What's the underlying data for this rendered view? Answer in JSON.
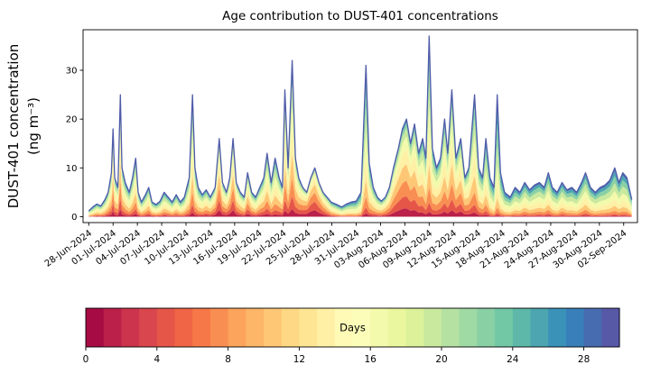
{
  "figure": {
    "background": "#ffffff"
  },
  "chart_data": {
    "type": "area",
    "title": "Age contribution to DUST-401 concentrations",
    "ylabel_line1": "DUST-401 concentration",
    "ylabel_line2": "(ng m⁻³)",
    "xlabel": "",
    "y_ticks": [
      0,
      10,
      20,
      30
    ],
    "ylim": [
      -1.2,
      38.3
    ],
    "xlim": [
      -0.7,
      67.7
    ],
    "x_tick_days": [
      0,
      3,
      6,
      9,
      12,
      15,
      18,
      21,
      24,
      27,
      30,
      33,
      36,
      39,
      42,
      45,
      48,
      51,
      54,
      57,
      60,
      63,
      66
    ],
    "x_tick_labels": [
      "28-Jun-2024",
      "01-Jul-2024",
      "04-Jul-2024",
      "07-Jul-2024",
      "10-Jul-2024",
      "13-Jul-2024",
      "16-Jul-2024",
      "19-Jul-2024",
      "22-Jul-2024",
      "25-Jul-2024",
      "28-Jul-2024",
      "31-Jul-2024",
      "03-Aug-2024",
      "06-Aug-2024",
      "09-Aug-2024",
      "12-Aug-2024",
      "15-Aug-2024",
      "18-Aug-2024",
      "21-Aug-2024",
      "24-Aug-2024",
      "27-Aug-2024",
      "30-Aug-2024",
      "02-Sep-2024"
    ],
    "colorbar": {
      "label": "Days",
      "ticks": [
        0,
        4,
        8,
        12,
        16,
        20,
        24,
        28
      ],
      "n_segments": 30,
      "max_days": 30
    },
    "colormap_anchors": [
      "#9e0142",
      "#d53e4f",
      "#f46d43",
      "#fdae61",
      "#fee08b",
      "#ffffbf",
      "#e6f598",
      "#abdda4",
      "#66c2a5",
      "#3288bd",
      "#5e4fa2"
    ],
    "line_color": "#4f5ba8",
    "n_age_bands": 10,
    "age_profile_sigma": 0.25,
    "age_profile_floor": 0.025,
    "points_note": "each point = [days since 28-Jun-2024, total concentration ng/m3, mean age fraction 0=fresh 1=old], values estimated from plot",
    "points": [
      [
        0,
        1.2,
        0.55
      ],
      [
        0.5,
        2,
        0.55
      ],
      [
        1,
        2.6,
        0.5
      ],
      [
        1.5,
        2.2,
        0.5
      ],
      [
        2,
        3.5,
        0.5
      ],
      [
        2.4,
        5,
        0.45
      ],
      [
        2.8,
        9,
        0.45
      ],
      [
        3,
        18,
        0.4
      ],
      [
        3.2,
        8,
        0.45
      ],
      [
        3.6,
        6,
        0.45
      ],
      [
        3.9,
        25,
        0.42
      ],
      [
        4.1,
        10,
        0.45
      ],
      [
        4.5,
        7,
        0.48
      ],
      [
        5,
        5,
        0.5
      ],
      [
        5.4,
        8,
        0.48
      ],
      [
        5.8,
        12,
        0.45
      ],
      [
        6.1,
        5,
        0.5
      ],
      [
        6.5,
        3,
        0.52
      ],
      [
        7,
        4.5,
        0.5
      ],
      [
        7.4,
        6,
        0.47
      ],
      [
        7.8,
        3,
        0.5
      ],
      [
        8.3,
        2.5,
        0.52
      ],
      [
        8.8,
        3.2,
        0.52
      ],
      [
        9.3,
        5,
        0.5
      ],
      [
        9.8,
        4,
        0.5
      ],
      [
        10.3,
        3,
        0.52
      ],
      [
        10.8,
        4.5,
        0.5
      ],
      [
        11.3,
        3,
        0.52
      ],
      [
        11.8,
        4,
        0.52
      ],
      [
        12.4,
        8,
        0.5
      ],
      [
        12.8,
        25,
        0.5
      ],
      [
        13.1,
        10,
        0.5
      ],
      [
        13.5,
        6,
        0.5
      ],
      [
        14,
        4.5,
        0.48
      ],
      [
        14.5,
        5.5,
        0.45
      ],
      [
        15,
        4,
        0.45
      ],
      [
        15.6,
        6,
        0.4
      ],
      [
        16.1,
        16,
        0.35
      ],
      [
        16.5,
        7,
        0.4
      ],
      [
        17,
        5,
        0.4
      ],
      [
        17.4,
        8,
        0.38
      ],
      [
        17.8,
        16,
        0.35
      ],
      [
        18.2,
        7,
        0.4
      ],
      [
        18.7,
        5,
        0.43
      ],
      [
        19.2,
        4,
        0.45
      ],
      [
        19.6,
        9,
        0.4
      ],
      [
        20.1,
        5,
        0.45
      ],
      [
        20.6,
        4,
        0.48
      ],
      [
        21.1,
        6,
        0.45
      ],
      [
        21.6,
        8,
        0.45
      ],
      [
        22,
        13,
        0.45
      ],
      [
        22.5,
        7,
        0.48
      ],
      [
        23,
        12,
        0.48
      ],
      [
        23.5,
        8,
        0.45
      ],
      [
        23.9,
        6,
        0.45
      ],
      [
        24.2,
        26,
        0.45
      ],
      [
        24.6,
        10,
        0.42
      ],
      [
        25.1,
        32,
        0.45
      ],
      [
        25.5,
        12,
        0.4
      ],
      [
        25.9,
        8,
        0.38
      ],
      [
        26.4,
        6,
        0.33
      ],
      [
        26.9,
        5,
        0.28
      ],
      [
        27.4,
        8,
        0.25
      ],
      [
        27.9,
        10,
        0.25
      ],
      [
        28.4,
        7,
        0.28
      ],
      [
        28.9,
        5,
        0.33
      ],
      [
        29.4,
        4,
        0.4
      ],
      [
        29.9,
        3,
        0.48
      ],
      [
        30.6,
        2.5,
        0.55
      ],
      [
        31.2,
        2,
        0.58
      ],
      [
        31.8,
        2.6,
        0.58
      ],
      [
        32.4,
        3,
        0.6
      ],
      [
        33,
        3.2,
        0.62
      ],
      [
        33.6,
        5,
        0.62
      ],
      [
        34.2,
        31,
        0.58
      ],
      [
        34.6,
        11,
        0.55
      ],
      [
        35.1,
        6,
        0.5
      ],
      [
        35.6,
        4,
        0.48
      ],
      [
        36.1,
        3.2,
        0.45
      ],
      [
        36.6,
        4,
        0.42
      ],
      [
        37.1,
        6,
        0.4
      ],
      [
        37.6,
        10,
        0.36
      ],
      [
        38.2,
        14,
        0.34
      ],
      [
        38.7,
        18,
        0.34
      ],
      [
        39.2,
        20,
        0.35
      ],
      [
        39.7,
        15,
        0.36
      ],
      [
        40.2,
        19,
        0.38
      ],
      [
        40.7,
        13,
        0.4
      ],
      [
        41.2,
        16,
        0.44
      ],
      [
        41.6,
        12,
        0.48
      ],
      [
        42,
        37,
        0.54
      ],
      [
        42.4,
        14,
        0.5
      ],
      [
        42.9,
        10,
        0.46
      ],
      [
        43.4,
        12,
        0.44
      ],
      [
        43.9,
        20,
        0.44
      ],
      [
        44.3,
        13,
        0.44
      ],
      [
        44.8,
        26,
        0.44
      ],
      [
        45.3,
        12,
        0.42
      ],
      [
        45.9,
        16,
        0.4
      ],
      [
        46.4,
        8,
        0.42
      ],
      [
        46.9,
        10,
        0.45
      ],
      [
        47.6,
        25,
        0.5
      ],
      [
        48.1,
        10,
        0.5
      ],
      [
        48.6,
        8,
        0.52
      ],
      [
        49,
        16,
        0.55
      ],
      [
        49.5,
        8,
        0.6
      ],
      [
        50,
        6,
        0.64
      ],
      [
        50.4,
        25,
        0.68
      ],
      [
        50.8,
        9,
        0.64
      ],
      [
        51.3,
        5,
        0.62
      ],
      [
        52,
        4,
        0.6
      ],
      [
        52.6,
        6,
        0.6
      ],
      [
        53.2,
        5,
        0.58
      ],
      [
        53.8,
        7,
        0.56
      ],
      [
        54.4,
        5.5,
        0.58
      ],
      [
        55,
        6.5,
        0.58
      ],
      [
        55.6,
        7,
        0.56
      ],
      [
        56.2,
        6,
        0.56
      ],
      [
        56.7,
        9,
        0.55
      ],
      [
        57.2,
        6,
        0.58
      ],
      [
        57.8,
        5,
        0.6
      ],
      [
        58.4,
        7,
        0.56
      ],
      [
        59,
        5.5,
        0.58
      ],
      [
        59.6,
        6,
        0.6
      ],
      [
        60.2,
        5,
        0.6
      ],
      [
        60.8,
        7,
        0.57
      ],
      [
        61.3,
        9,
        0.55
      ],
      [
        61.9,
        6,
        0.58
      ],
      [
        62.5,
        5,
        0.6
      ],
      [
        63.1,
        6,
        0.6
      ],
      [
        63.7,
        6.5,
        0.6
      ],
      [
        64.3,
        7.5,
        0.6
      ],
      [
        64.9,
        10,
        0.6
      ],
      [
        65.4,
        7,
        0.6
      ],
      [
        65.9,
        9,
        0.6
      ],
      [
        66.4,
        8,
        0.6
      ],
      [
        66.8,
        5,
        0.6
      ],
      [
        67,
        3.5,
        0.6
      ]
    ]
  }
}
